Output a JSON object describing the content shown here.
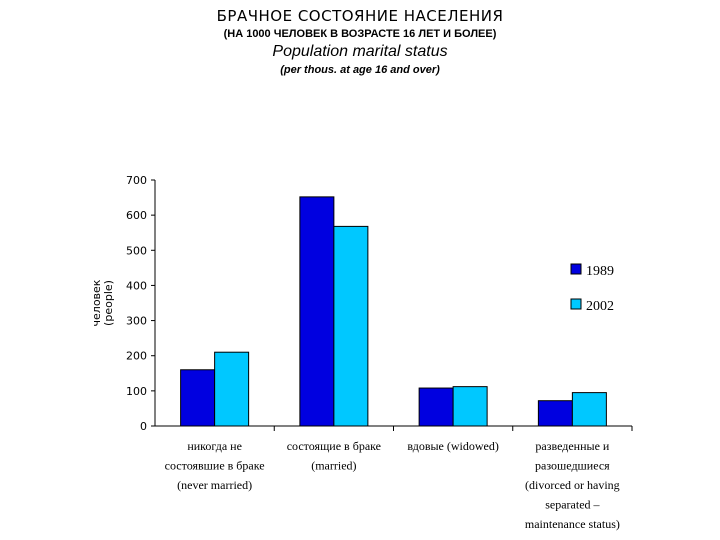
{
  "chart_data": {
    "type": "bar",
    "title": "БРАЧНОЕ СОСТОЯНИЕ НАСЕЛЕНИЯ",
    "subtitle": "(НА 1000 ЧЕЛОВЕК В ВОЗРАСТЕ 16 ЛЕТ И БОЛЕЕ)",
    "title_en": "Population marital status",
    "subtitle_en": "(per thous. at age 16 and over)",
    "ylabel": [
      "человек",
      "(people)"
    ],
    "xlabel": "",
    "ylim": [
      0,
      700
    ],
    "yticks": [
      0,
      100,
      200,
      300,
      400,
      500,
      600,
      700
    ],
    "legend_position": "right",
    "categories": [
      [
        "никогда не",
        "состоявшие в браке",
        "(never married)"
      ],
      [
        "состоящие в браке",
        "(married)"
      ],
      [
        "вдовые (widowed)"
      ],
      [
        "разведенные и",
        "разошедшиеся",
        "(divorced or having",
        "separated –",
        "maintenance status)"
      ]
    ],
    "series": [
      {
        "name": "1989",
        "color": "#0000e0",
        "values": [
          160,
          652,
          108,
          72
        ]
      },
      {
        "name": "2002",
        "color": "#00c8ff",
        "values": [
          210,
          568,
          112,
          95
        ]
      }
    ]
  }
}
